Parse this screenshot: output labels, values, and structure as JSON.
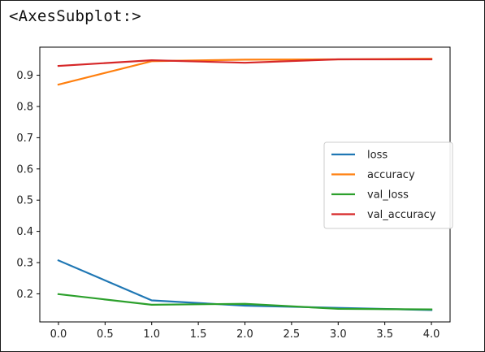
{
  "output_repr": "<AxesSubplot:>",
  "chart_data": {
    "type": "line",
    "x": [
      0.0,
      1.0,
      2.0,
      3.0,
      4.0
    ],
    "series": [
      {
        "name": "loss",
        "color": "#1f77b4",
        "values": [
          0.307,
          0.179,
          0.162,
          0.155,
          0.148
        ]
      },
      {
        "name": "accuracy",
        "color": "#ff7f0e",
        "values": [
          0.87,
          0.945,
          0.95,
          0.951,
          0.953
        ]
      },
      {
        "name": "val_loss",
        "color": "#2ca02c",
        "values": [
          0.199,
          0.165,
          0.168,
          0.152,
          0.15
        ]
      },
      {
        "name": "val_accuracy",
        "color": "#d62728",
        "values": [
          0.93,
          0.948,
          0.94,
          0.951,
          0.951
        ]
      }
    ],
    "xticks": [
      "0.0",
      "0.5",
      "1.0",
      "1.5",
      "2.0",
      "2.5",
      "3.0",
      "3.5",
      "4.0"
    ],
    "yticks": [
      "0.2",
      "0.3",
      "0.4",
      "0.5",
      "0.6",
      "0.7",
      "0.8",
      "0.9"
    ],
    "xlim": [
      -0.2,
      4.2
    ],
    "ylim": [
      0.11,
      0.99
    ],
    "grid": false,
    "legend_position": "center-right"
  }
}
